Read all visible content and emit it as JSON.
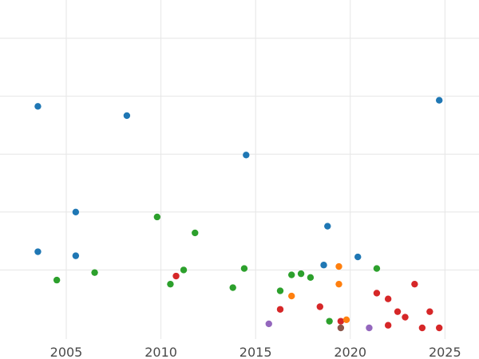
{
  "chart_data": {
    "type": "scatter",
    "title": "",
    "xlabel": "",
    "ylabel": "",
    "xlim": [
      2001.5,
      2026.8
    ],
    "ylim": [
      0,
      1.1
    ],
    "grid": true,
    "x_ticks": [
      2005,
      2010,
      2015,
      2020,
      2025
    ],
    "x_tick_labels": [
      "2005",
      "2010",
      "2015",
      "2020",
      "2025"
    ],
    "y_gridlines": [
      0.2,
      0.4,
      0.6,
      0.8,
      1.0
    ],
    "y_tick_labels_shown": false,
    "series": [
      {
        "color": "#1f77b4",
        "points": [
          {
            "x": 2003.5,
            "y": 0.765
          },
          {
            "x": 2008.2,
            "y": 0.733
          },
          {
            "x": 2014.5,
            "y": 0.597
          },
          {
            "x": 2005.5,
            "y": 0.4
          },
          {
            "x": 2003.5,
            "y": 0.263
          },
          {
            "x": 2005.5,
            "y": 0.249
          },
          {
            "x": 2018.8,
            "y": 0.351
          },
          {
            "x": 2020.4,
            "y": 0.245
          },
          {
            "x": 2018.6,
            "y": 0.217
          },
          {
            "x": 2024.7,
            "y": 0.786
          }
        ]
      },
      {
        "color": "#2ca02c",
        "points": [
          {
            "x": 2004.5,
            "y": 0.165
          },
          {
            "x": 2006.5,
            "y": 0.191
          },
          {
            "x": 2009.8,
            "y": 0.383
          },
          {
            "x": 2011.8,
            "y": 0.328
          },
          {
            "x": 2011.2,
            "y": 0.2
          },
          {
            "x": 2010.5,
            "y": 0.151
          },
          {
            "x": 2013.8,
            "y": 0.139
          },
          {
            "x": 2014.4,
            "y": 0.205
          },
          {
            "x": 2016.3,
            "y": 0.128
          },
          {
            "x": 2016.9,
            "y": 0.183
          },
          {
            "x": 2017.4,
            "y": 0.187
          },
          {
            "x": 2017.9,
            "y": 0.174
          },
          {
            "x": 2018.9,
            "y": 0.023
          },
          {
            "x": 2021.4,
            "y": 0.205
          }
        ]
      },
      {
        "color": "#d62728",
        "points": [
          {
            "x": 2010.8,
            "y": 0.179
          },
          {
            "x": 2016.3,
            "y": 0.064
          },
          {
            "x": 2018.4,
            "y": 0.073
          },
          {
            "x": 2019.5,
            "y": 0.023
          },
          {
            "x": 2021.4,
            "y": 0.12
          },
          {
            "x": 2022.0,
            "y": 0.1
          },
          {
            "x": 2022.0,
            "y": 0.009
          },
          {
            "x": 2022.5,
            "y": 0.056
          },
          {
            "x": 2022.9,
            "y": 0.037
          },
          {
            "x": 2023.4,
            "y": 0.151
          },
          {
            "x": 2023.8,
            "y": 0.0
          },
          {
            "x": 2024.2,
            "y": 0.056
          },
          {
            "x": 2024.7,
            "y": 0.0
          }
        ]
      },
      {
        "color": "#ff7f0e",
        "points": [
          {
            "x": 2019.4,
            "y": 0.212
          },
          {
            "x": 2019.4,
            "y": 0.151
          },
          {
            "x": 2016.9,
            "y": 0.11
          },
          {
            "x": 2019.8,
            "y": 0.028
          }
        ]
      },
      {
        "color": "#9467bd",
        "points": [
          {
            "x": 2015.7,
            "y": 0.014
          },
          {
            "x": 2021.0,
            "y": 0.0
          }
        ]
      },
      {
        "color": "#8c564b",
        "points": [
          {
            "x": 2019.5,
            "y": 0.0
          }
        ]
      }
    ]
  }
}
